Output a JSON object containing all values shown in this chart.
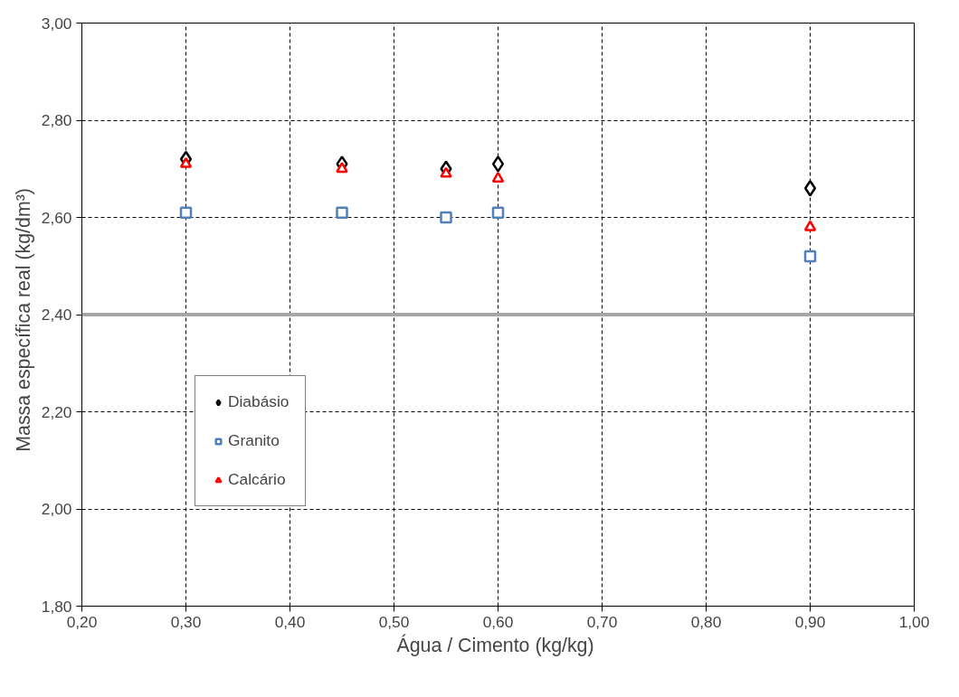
{
  "chart_data": {
    "type": "scatter",
    "xlabel": "Água / Cimento  (kg/kg)",
    "ylabel": "Massa específica  real  (kg/dm³)",
    "x": [
      0.3,
      0.45,
      0.55,
      0.6,
      0.9
    ],
    "series": [
      {
        "name": "Diabásio",
        "color": "#000000",
        "marker": "diamond",
        "values": [
          2.72,
          2.71,
          2.7,
          2.71,
          2.66
        ]
      },
      {
        "name": "Granito",
        "color": "#4f81bd",
        "marker": "square",
        "values": [
          2.61,
          2.61,
          2.6,
          2.61,
          2.52
        ]
      },
      {
        "name": "Calcário",
        "color": "#ff0000",
        "marker": "triangle",
        "values": [
          2.71,
          2.7,
          2.69,
          2.68,
          2.58
        ]
      }
    ],
    "xlim": [
      0.2,
      1.0
    ],
    "xticks": [
      {
        "value": 0.2,
        "label": "0,20"
      },
      {
        "value": 0.3,
        "label": "0,30"
      },
      {
        "value": 0.4,
        "label": "0,40"
      },
      {
        "value": 0.5,
        "label": "0,50"
      },
      {
        "value": 0.6,
        "label": "0,60"
      },
      {
        "value": 0.7,
        "label": "0,70"
      },
      {
        "value": 0.8,
        "label": "0,80"
      },
      {
        "value": 0.9,
        "label": "0,90"
      },
      {
        "value": 1.0,
        "label": "1,00"
      }
    ],
    "ylim": [
      1.8,
      3.0
    ],
    "yticks": [
      {
        "value": 1.8,
        "label": "1,80"
      },
      {
        "value": 2.0,
        "label": "2,00"
      },
      {
        "value": 2.2,
        "label": "2,20"
      },
      {
        "value": 2.4,
        "label": "2,40"
      },
      {
        "value": 2.6,
        "label": "2,60"
      },
      {
        "value": 2.8,
        "label": "2,80"
      },
      {
        "value": 3.0,
        "label": "3,00"
      }
    ],
    "ref_lines": [
      {
        "axis": "y",
        "value": 2.4,
        "color": "#a6a6a6"
      }
    ],
    "grid": true,
    "legend": "left"
  }
}
